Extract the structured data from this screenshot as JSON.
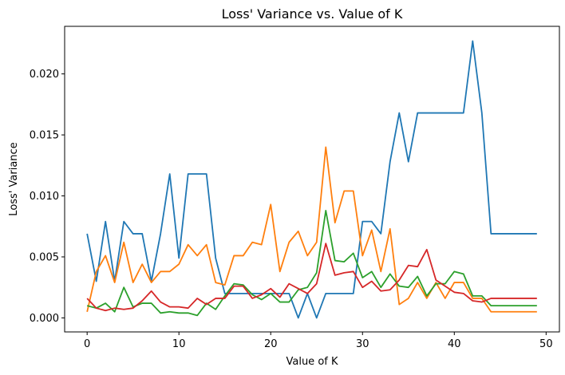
{
  "chart_data": {
    "type": "line",
    "title": "Loss' Variance vs. Value of K",
    "xlabel": "Value of K",
    "ylabel": "Loss' Variance",
    "xlim": [
      -2.45,
      51.45
    ],
    "ylim": [
      -0.00115,
      0.0239
    ],
    "xticks": [
      0,
      10,
      20,
      30,
      40,
      50
    ],
    "xtick_labels": [
      "0",
      "10",
      "20",
      "30",
      "40",
      "50"
    ],
    "yticks": [
      0.0,
      0.005,
      0.01,
      0.015,
      0.02
    ],
    "ytick_labels": [
      "0.000",
      "0.005",
      "0.010",
      "0.015",
      "0.020"
    ],
    "grid": false,
    "x": [
      0,
      1,
      2,
      3,
      4,
      5,
      6,
      7,
      8,
      9,
      10,
      11,
      12,
      13,
      14,
      15,
      16,
      17,
      18,
      19,
      20,
      21,
      22,
      23,
      24,
      25,
      26,
      27,
      28,
      29,
      30,
      31,
      32,
      33,
      34,
      35,
      36,
      37,
      38,
      39,
      40,
      41,
      42,
      43,
      44,
      45,
      46,
      47,
      48,
      49
    ],
    "series": [
      {
        "color": "#1f77b4",
        "values": [
          0.0069,
          0.003,
          0.0079,
          0.003,
          0.0079,
          0.0069,
          0.0069,
          0.003,
          0.0069,
          0.0118,
          0.0049,
          0.0118,
          0.0118,
          0.0118,
          0.0049,
          0.002,
          0.002,
          0.002,
          0.002,
          0.002,
          0.002,
          0.002,
          0.002,
          0.0,
          0.002,
          0.0,
          0.002,
          0.002,
          0.002,
          0.002,
          0.0079,
          0.0079,
          0.0069,
          0.0128,
          0.0168,
          0.0128,
          0.0168,
          0.0168,
          0.0168,
          0.0168,
          0.0168,
          0.0168,
          0.0227,
          0.0168,
          0.0069,
          0.0069,
          0.0069,
          0.0069,
          0.0069,
          0.0069
        ]
      },
      {
        "color": "#ff7f0e",
        "values": [
          0.0005,
          0.0038,
          0.0051,
          0.0029,
          0.0062,
          0.0029,
          0.0044,
          0.0029,
          0.0038,
          0.0038,
          0.0044,
          0.006,
          0.0051,
          0.006,
          0.0029,
          0.0027,
          0.0051,
          0.0051,
          0.0062,
          0.006,
          0.0093,
          0.0038,
          0.0062,
          0.0071,
          0.0051,
          0.0062,
          0.014,
          0.0078,
          0.0104,
          0.0104,
          0.0051,
          0.0072,
          0.0038,
          0.0073,
          0.0011,
          0.0016,
          0.0029,
          0.0016,
          0.0029,
          0.0016,
          0.0029,
          0.0029,
          0.0016,
          0.0016,
          0.0005,
          0.0005,
          0.0005,
          0.0005,
          0.0005,
          0.0005
        ]
      },
      {
        "color": "#2ca02c",
        "values": [
          0.001,
          0.0008,
          0.0012,
          0.0005,
          0.0025,
          0.0009,
          0.0012,
          0.0012,
          0.0004,
          0.0005,
          0.0004,
          0.0004,
          0.0002,
          0.0012,
          0.0007,
          0.0018,
          0.0028,
          0.0027,
          0.0019,
          0.0015,
          0.002,
          0.0013,
          0.0013,
          0.0023,
          0.0025,
          0.0037,
          0.0088,
          0.0047,
          0.0046,
          0.0053,
          0.0033,
          0.0038,
          0.0025,
          0.0036,
          0.0026,
          0.0025,
          0.0034,
          0.0018,
          0.0028,
          0.0028,
          0.0038,
          0.0036,
          0.0018,
          0.0018,
          0.001,
          0.001,
          0.001,
          0.001,
          0.001,
          0.001
        ]
      },
      {
        "color": "#d62728",
        "values": [
          0.0016,
          0.0008,
          0.0006,
          0.0008,
          0.0007,
          0.0008,
          0.0014,
          0.0022,
          0.0013,
          0.0009,
          0.0009,
          0.0008,
          0.0016,
          0.0011,
          0.0016,
          0.0016,
          0.0026,
          0.0026,
          0.0016,
          0.0019,
          0.0024,
          0.0017,
          0.0028,
          0.0024,
          0.002,
          0.0028,
          0.0061,
          0.0035,
          0.0037,
          0.0038,
          0.0025,
          0.003,
          0.0022,
          0.0023,
          0.0031,
          0.0043,
          0.0042,
          0.0056,
          0.0031,
          0.0026,
          0.0021,
          0.002,
          0.0014,
          0.0013,
          0.0016,
          0.0016,
          0.0016,
          0.0016,
          0.0016,
          0.0016
        ]
      }
    ]
  }
}
